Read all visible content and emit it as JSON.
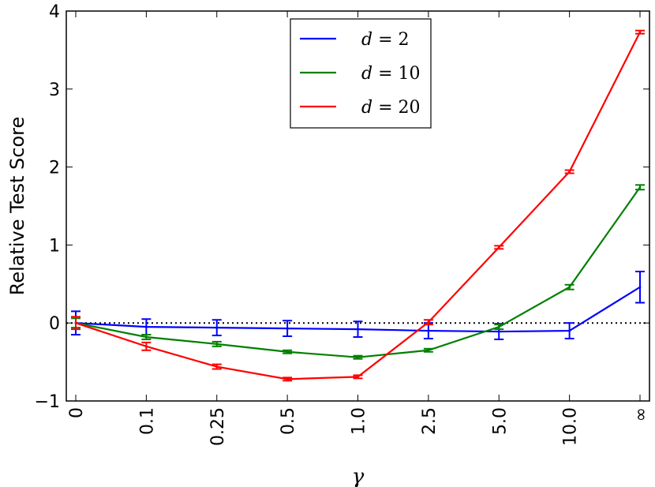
{
  "chart_data": {
    "type": "line",
    "title": "",
    "xlabel": "γ",
    "ylabel": "Relative Test Score",
    "categories": [
      "0",
      "0.1",
      "0.25",
      "0.5",
      "1.0",
      "2.5",
      "5.0",
      "10.0",
      "∞"
    ],
    "ylim": [
      -1,
      4
    ],
    "yticks": [
      "−1",
      "0",
      "1",
      "2",
      "3",
      "4"
    ],
    "ytick_values": [
      -1,
      0,
      1,
      2,
      3,
      4
    ],
    "reference_line": {
      "y": 0,
      "style": "dotted",
      "color": "#000000"
    },
    "legend_position": "top-center",
    "series": [
      {
        "name": "d = 2",
        "legend_var": "d",
        "legend_value": "2",
        "color": "#0000ff",
        "values": [
          0.0,
          -0.05,
          -0.06,
          -0.07,
          -0.08,
          -0.1,
          -0.11,
          -0.1,
          0.46
        ],
        "errors": [
          0.15,
          0.1,
          0.1,
          0.1,
          0.1,
          0.1,
          0.1,
          0.1,
          0.2
        ]
      },
      {
        "name": "d = 10",
        "legend_var": "d",
        "legend_value": "10",
        "color": "#008000",
        "values": [
          0.0,
          -0.18,
          -0.27,
          -0.37,
          -0.44,
          -0.35,
          -0.05,
          0.46,
          1.74
        ],
        "errors": [
          0.06,
          0.03,
          0.03,
          0.02,
          0.02,
          0.02,
          0.03,
          0.03,
          0.03
        ]
      },
      {
        "name": "d = 20",
        "legend_var": "d",
        "legend_value": "20",
        "color": "#ff0000",
        "values": [
          0.0,
          -0.3,
          -0.56,
          -0.72,
          -0.69,
          0.01,
          0.97,
          1.94,
          3.73
        ],
        "errors": [
          0.08,
          0.05,
          0.03,
          0.02,
          0.02,
          0.03,
          0.02,
          0.02,
          0.02
        ]
      }
    ]
  }
}
